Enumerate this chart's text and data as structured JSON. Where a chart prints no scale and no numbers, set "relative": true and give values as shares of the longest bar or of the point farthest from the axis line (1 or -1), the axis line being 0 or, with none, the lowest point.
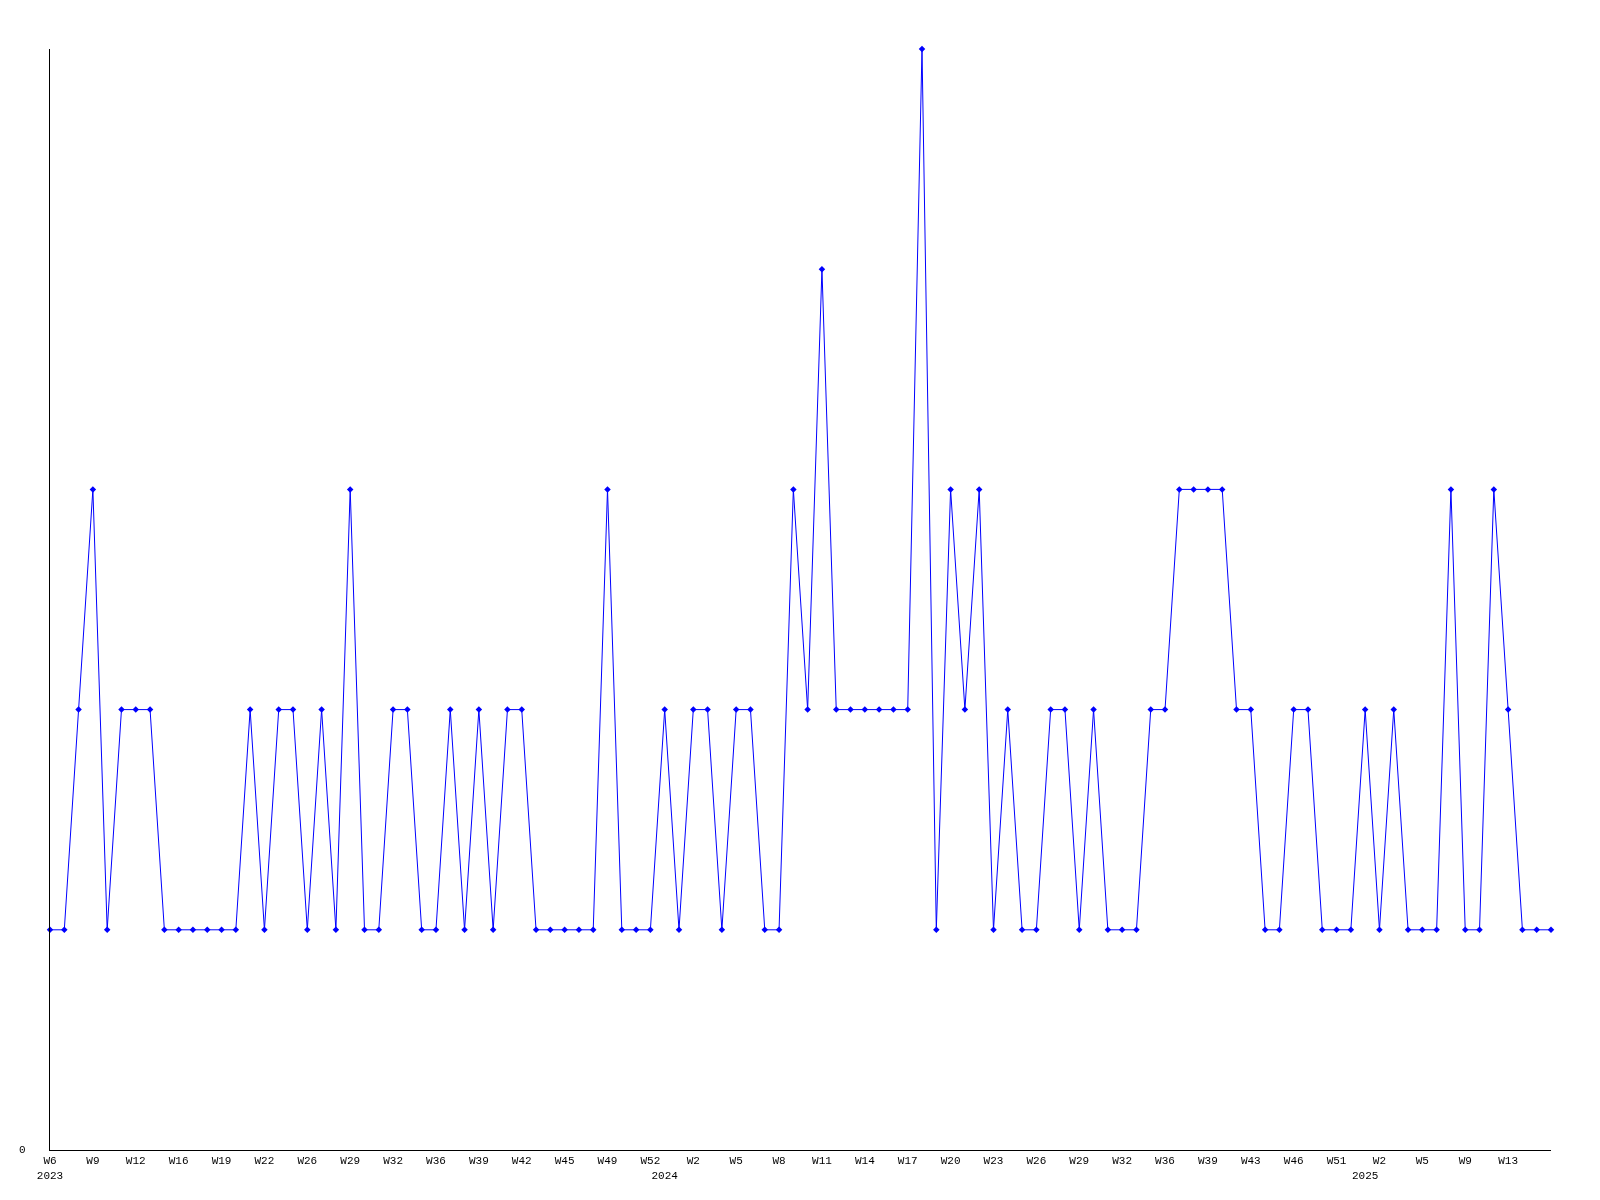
{
  "chart_data": {
    "type": "line",
    "relative": true,
    "marker": "diamond",
    "line_style": "solid",
    "legend": false,
    "categories": [
      "W6\n2023",
      null,
      null,
      "W9",
      null,
      null,
      "W12",
      null,
      null,
      "W16",
      null,
      null,
      "W19",
      null,
      null,
      "W22",
      null,
      null,
      "W26",
      null,
      null,
      "W29",
      null,
      null,
      "W32",
      null,
      null,
      "W36",
      null,
      null,
      "W39",
      null,
      null,
      "W42",
      null,
      null,
      "W45",
      null,
      null,
      "W49",
      null,
      null,
      "W52",
      "\n2024",
      null,
      "W2",
      null,
      null,
      "W5",
      null,
      null,
      "W8",
      null,
      null,
      "W11",
      null,
      null,
      "W14",
      null,
      null,
      "W17",
      null,
      null,
      "W20",
      null,
      null,
      "W23",
      null,
      null,
      "W26",
      null,
      null,
      "W29",
      null,
      null,
      "W32",
      null,
      null,
      "W36",
      null,
      null,
      "W39",
      null,
      null,
      "W43",
      null,
      null,
      "W46",
      null,
      null,
      "W51",
      null,
      "\n2025",
      "W2",
      null,
      null,
      "W5",
      null,
      null,
      "W9",
      null,
      null,
      "W13",
      null,
      null,
      null
    ],
    "annotations": [
      "0"
    ],
    "series": [
      {
        "color": "#0000ff",
        "values": [
          0.2,
          0.2,
          0.4,
          0.6,
          0.2,
          0.4,
          0.4,
          0.4,
          0.2,
          0.2,
          0.2,
          0.2,
          0.2,
          0.2,
          0.4,
          0.2,
          0.4,
          0.4,
          0.2,
          0.4,
          0.2,
          0.6,
          0.2,
          0.2,
          0.4,
          0.4,
          0.2,
          0.2,
          0.4,
          0.2,
          0.4,
          0.2,
          0.4,
          0.4,
          0.2,
          0.2,
          0.2,
          0.2,
          0.2,
          0.6,
          0.2,
          0.2,
          0.2,
          0.4,
          0.2,
          0.4,
          0.4,
          0.2,
          0.4,
          0.4,
          0.2,
          0.2,
          0.6,
          0.4,
          0.8,
          0.4,
          0.4,
          0.4,
          0.4,
          0.4,
          0.4,
          1.0,
          0.2,
          0.6,
          0.4,
          0.6,
          0.2,
          0.4,
          0.2,
          0.2,
          0.4,
          0.4,
          0.2,
          0.4,
          0.2,
          0.2,
          0.2,
          0.4,
          0.4,
          0.6,
          0.6,
          0.6,
          0.6,
          0.4,
          0.4,
          0.2,
          0.2,
          0.4,
          0.4,
          0.2,
          0.2,
          0.2,
          0.4,
          0.2,
          0.4,
          0.2,
          0.2,
          0.2,
          0.6,
          0.2,
          0.2,
          0.6,
          0.4,
          0.2,
          0.2,
          0.2
        ]
      }
    ]
  }
}
